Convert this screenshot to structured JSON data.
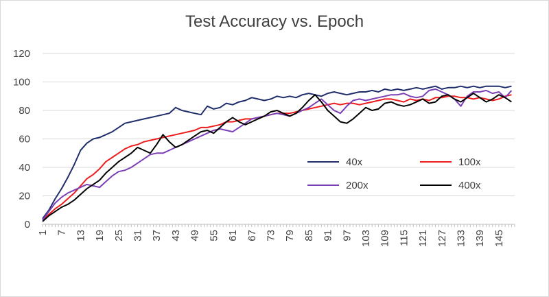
{
  "chart_data": {
    "type": "line",
    "title": "Test Accuracy vs. Epoch",
    "xlabel": "",
    "ylabel": "",
    "x": {
      "start": 1,
      "end": 150,
      "tick_step": 6
    },
    "ylim": [
      0,
      120
    ],
    "yticks": [
      0,
      20,
      40,
      60,
      80,
      100,
      120
    ],
    "grid": "horizontal",
    "legend": "inside-lower-right",
    "series": [
      {
        "name": "40x",
        "color": "#1f2d6b",
        "points": [
          [
            1,
            4
          ],
          [
            3,
            10
          ],
          [
            5,
            18
          ],
          [
            7,
            25
          ],
          [
            9,
            33
          ],
          [
            11,
            42
          ],
          [
            13,
            52
          ],
          [
            15,
            57
          ],
          [
            17,
            60
          ],
          [
            19,
            61
          ],
          [
            21,
            63
          ],
          [
            23,
            65
          ],
          [
            25,
            68
          ],
          [
            27,
            71
          ],
          [
            29,
            72
          ],
          [
            31,
            73
          ],
          [
            33,
            74
          ],
          [
            35,
            75
          ],
          [
            37,
            76
          ],
          [
            39,
            77
          ],
          [
            41,
            78
          ],
          [
            43,
            82
          ],
          [
            45,
            80
          ],
          [
            47,
            79
          ],
          [
            49,
            78
          ],
          [
            51,
            77
          ],
          [
            53,
            83
          ],
          [
            55,
            81
          ],
          [
            57,
            82
          ],
          [
            59,
            85
          ],
          [
            61,
            84
          ],
          [
            63,
            86
          ],
          [
            65,
            87
          ],
          [
            67,
            89
          ],
          [
            69,
            88
          ],
          [
            71,
            87
          ],
          [
            73,
            88
          ],
          [
            75,
            90
          ],
          [
            77,
            89
          ],
          [
            79,
            90
          ],
          [
            81,
            89
          ],
          [
            83,
            91
          ],
          [
            85,
            92
          ],
          [
            87,
            91
          ],
          [
            89,
            90
          ],
          [
            91,
            92
          ],
          [
            93,
            93
          ],
          [
            95,
            92
          ],
          [
            97,
            91
          ],
          [
            99,
            92
          ],
          [
            101,
            93
          ],
          [
            103,
            93
          ],
          [
            105,
            94
          ],
          [
            107,
            93
          ],
          [
            109,
            95
          ],
          [
            111,
            94
          ],
          [
            113,
            95
          ],
          [
            115,
            94
          ],
          [
            117,
            95
          ],
          [
            119,
            96
          ],
          [
            121,
            95
          ],
          [
            123,
            96
          ],
          [
            125,
            97
          ],
          [
            127,
            95
          ],
          [
            129,
            96
          ],
          [
            131,
            96
          ],
          [
            133,
            97
          ],
          [
            135,
            96
          ],
          [
            137,
            97
          ],
          [
            139,
            96
          ],
          [
            141,
            97
          ],
          [
            143,
            97
          ],
          [
            145,
            97
          ],
          [
            147,
            96
          ],
          [
            149,
            97
          ]
        ]
      },
      {
        "name": "100x",
        "color": "#ee1c1c",
        "points": [
          [
            1,
            3
          ],
          [
            3,
            7
          ],
          [
            5,
            11
          ],
          [
            7,
            14
          ],
          [
            9,
            18
          ],
          [
            11,
            22
          ],
          [
            13,
            27
          ],
          [
            15,
            32
          ],
          [
            17,
            35
          ],
          [
            19,
            39
          ],
          [
            21,
            44
          ],
          [
            23,
            47
          ],
          [
            25,
            50
          ],
          [
            27,
            53
          ],
          [
            29,
            55
          ],
          [
            31,
            56
          ],
          [
            33,
            58
          ],
          [
            35,
            59
          ],
          [
            37,
            60
          ],
          [
            39,
            61
          ],
          [
            41,
            62
          ],
          [
            43,
            63
          ],
          [
            45,
            64
          ],
          [
            47,
            65
          ],
          [
            49,
            66
          ],
          [
            51,
            68
          ],
          [
            53,
            68
          ],
          [
            55,
            69
          ],
          [
            57,
            70
          ],
          [
            59,
            72
          ],
          [
            61,
            72
          ],
          [
            63,
            73
          ],
          [
            65,
            74
          ],
          [
            67,
            74
          ],
          [
            69,
            75
          ],
          [
            71,
            76
          ],
          [
            73,
            77
          ],
          [
            75,
            78
          ],
          [
            77,
            78
          ],
          [
            79,
            78
          ],
          [
            81,
            79
          ],
          [
            83,
            80
          ],
          [
            85,
            81
          ],
          [
            87,
            82
          ],
          [
            89,
            83
          ],
          [
            91,
            84
          ],
          [
            93,
            85
          ],
          [
            95,
            84
          ],
          [
            97,
            85
          ],
          [
            99,
            85
          ],
          [
            101,
            84
          ],
          [
            103,
            85
          ],
          [
            105,
            86
          ],
          [
            107,
            87
          ],
          [
            109,
            88
          ],
          [
            111,
            88
          ],
          [
            113,
            87
          ],
          [
            115,
            86
          ],
          [
            117,
            88
          ],
          [
            119,
            87
          ],
          [
            121,
            88
          ],
          [
            123,
            87
          ],
          [
            125,
            89
          ],
          [
            127,
            89
          ],
          [
            129,
            90
          ],
          [
            131,
            90
          ],
          [
            133,
            89
          ],
          [
            135,
            89
          ],
          [
            137,
            88
          ],
          [
            139,
            89
          ],
          [
            141,
            88
          ],
          [
            143,
            87
          ],
          [
            145,
            88
          ],
          [
            147,
            90
          ],
          [
            149,
            91
          ]
        ]
      },
      {
        "name": "200x",
        "color": "#7b3fb5",
        "points": [
          [
            1,
            3
          ],
          [
            3,
            9
          ],
          [
            5,
            15
          ],
          [
            7,
            19
          ],
          [
            9,
            22
          ],
          [
            11,
            24
          ],
          [
            13,
            26
          ],
          [
            15,
            28
          ],
          [
            17,
            27
          ],
          [
            19,
            26
          ],
          [
            21,
            30
          ],
          [
            23,
            34
          ],
          [
            25,
            37
          ],
          [
            27,
            38
          ],
          [
            29,
            40
          ],
          [
            31,
            43
          ],
          [
            33,
            46
          ],
          [
            35,
            49
          ],
          [
            37,
            50
          ],
          [
            39,
            50
          ],
          [
            41,
            52
          ],
          [
            43,
            54
          ],
          [
            45,
            56
          ],
          [
            47,
            58
          ],
          [
            49,
            60
          ],
          [
            51,
            62
          ],
          [
            53,
            64
          ],
          [
            55,
            66
          ],
          [
            57,
            67
          ],
          [
            59,
            66
          ],
          [
            61,
            65
          ],
          [
            63,
            68
          ],
          [
            65,
            71
          ],
          [
            67,
            74
          ],
          [
            69,
            75
          ],
          [
            71,
            76
          ],
          [
            73,
            77
          ],
          [
            75,
            78
          ],
          [
            77,
            77
          ],
          [
            79,
            76
          ],
          [
            81,
            78
          ],
          [
            83,
            80
          ],
          [
            85,
            82
          ],
          [
            87,
            85
          ],
          [
            89,
            88
          ],
          [
            91,
            84
          ],
          [
            93,
            80
          ],
          [
            95,
            78
          ],
          [
            97,
            83
          ],
          [
            99,
            87
          ],
          [
            101,
            88
          ],
          [
            103,
            87
          ],
          [
            105,
            88
          ],
          [
            107,
            89
          ],
          [
            109,
            90
          ],
          [
            111,
            91
          ],
          [
            113,
            91
          ],
          [
            115,
            92
          ],
          [
            117,
            90
          ],
          [
            119,
            89
          ],
          [
            121,
            90
          ],
          [
            123,
            94
          ],
          [
            125,
            95
          ],
          [
            127,
            93
          ],
          [
            129,
            91
          ],
          [
            131,
            88
          ],
          [
            133,
            83
          ],
          [
            135,
            90
          ],
          [
            137,
            93
          ],
          [
            139,
            93
          ],
          [
            141,
            94
          ],
          [
            143,
            92
          ],
          [
            145,
            93
          ],
          [
            147,
            89
          ],
          [
            149,
            94
          ]
        ]
      },
      {
        "name": "400x",
        "color": "#000000",
        "points": [
          [
            1,
            2
          ],
          [
            3,
            6
          ],
          [
            5,
            9
          ],
          [
            7,
            12
          ],
          [
            9,
            14
          ],
          [
            11,
            17
          ],
          [
            13,
            21
          ],
          [
            15,
            25
          ],
          [
            17,
            28
          ],
          [
            19,
            31
          ],
          [
            21,
            36
          ],
          [
            23,
            40
          ],
          [
            25,
            44
          ],
          [
            27,
            47
          ],
          [
            29,
            50
          ],
          [
            31,
            54
          ],
          [
            33,
            52
          ],
          [
            35,
            50
          ],
          [
            37,
            56
          ],
          [
            39,
            63
          ],
          [
            41,
            58
          ],
          [
            43,
            54
          ],
          [
            45,
            56
          ],
          [
            47,
            59
          ],
          [
            49,
            62
          ],
          [
            51,
            65
          ],
          [
            53,
            66
          ],
          [
            55,
            64
          ],
          [
            57,
            68
          ],
          [
            59,
            72
          ],
          [
            61,
            75
          ],
          [
            63,
            72
          ],
          [
            65,
            70
          ],
          [
            67,
            72
          ],
          [
            69,
            74
          ],
          [
            71,
            76
          ],
          [
            73,
            79
          ],
          [
            75,
            80
          ],
          [
            77,
            78
          ],
          [
            79,
            76
          ],
          [
            81,
            78
          ],
          [
            83,
            82
          ],
          [
            85,
            87
          ],
          [
            87,
            91
          ],
          [
            89,
            86
          ],
          [
            91,
            80
          ],
          [
            93,
            76
          ],
          [
            95,
            72
          ],
          [
            97,
            71
          ],
          [
            99,
            74
          ],
          [
            101,
            78
          ],
          [
            103,
            82
          ],
          [
            105,
            80
          ],
          [
            107,
            81
          ],
          [
            109,
            85
          ],
          [
            111,
            86
          ],
          [
            113,
            84
          ],
          [
            115,
            83
          ],
          [
            117,
            84
          ],
          [
            119,
            86
          ],
          [
            121,
            88
          ],
          [
            123,
            85
          ],
          [
            125,
            86
          ],
          [
            127,
            90
          ],
          [
            129,
            91
          ],
          [
            131,
            88
          ],
          [
            133,
            86
          ],
          [
            135,
            89
          ],
          [
            137,
            92
          ],
          [
            139,
            89
          ],
          [
            141,
            86
          ],
          [
            143,
            88
          ],
          [
            145,
            91
          ],
          [
            147,
            89
          ],
          [
            149,
            86
          ]
        ]
      }
    ]
  }
}
